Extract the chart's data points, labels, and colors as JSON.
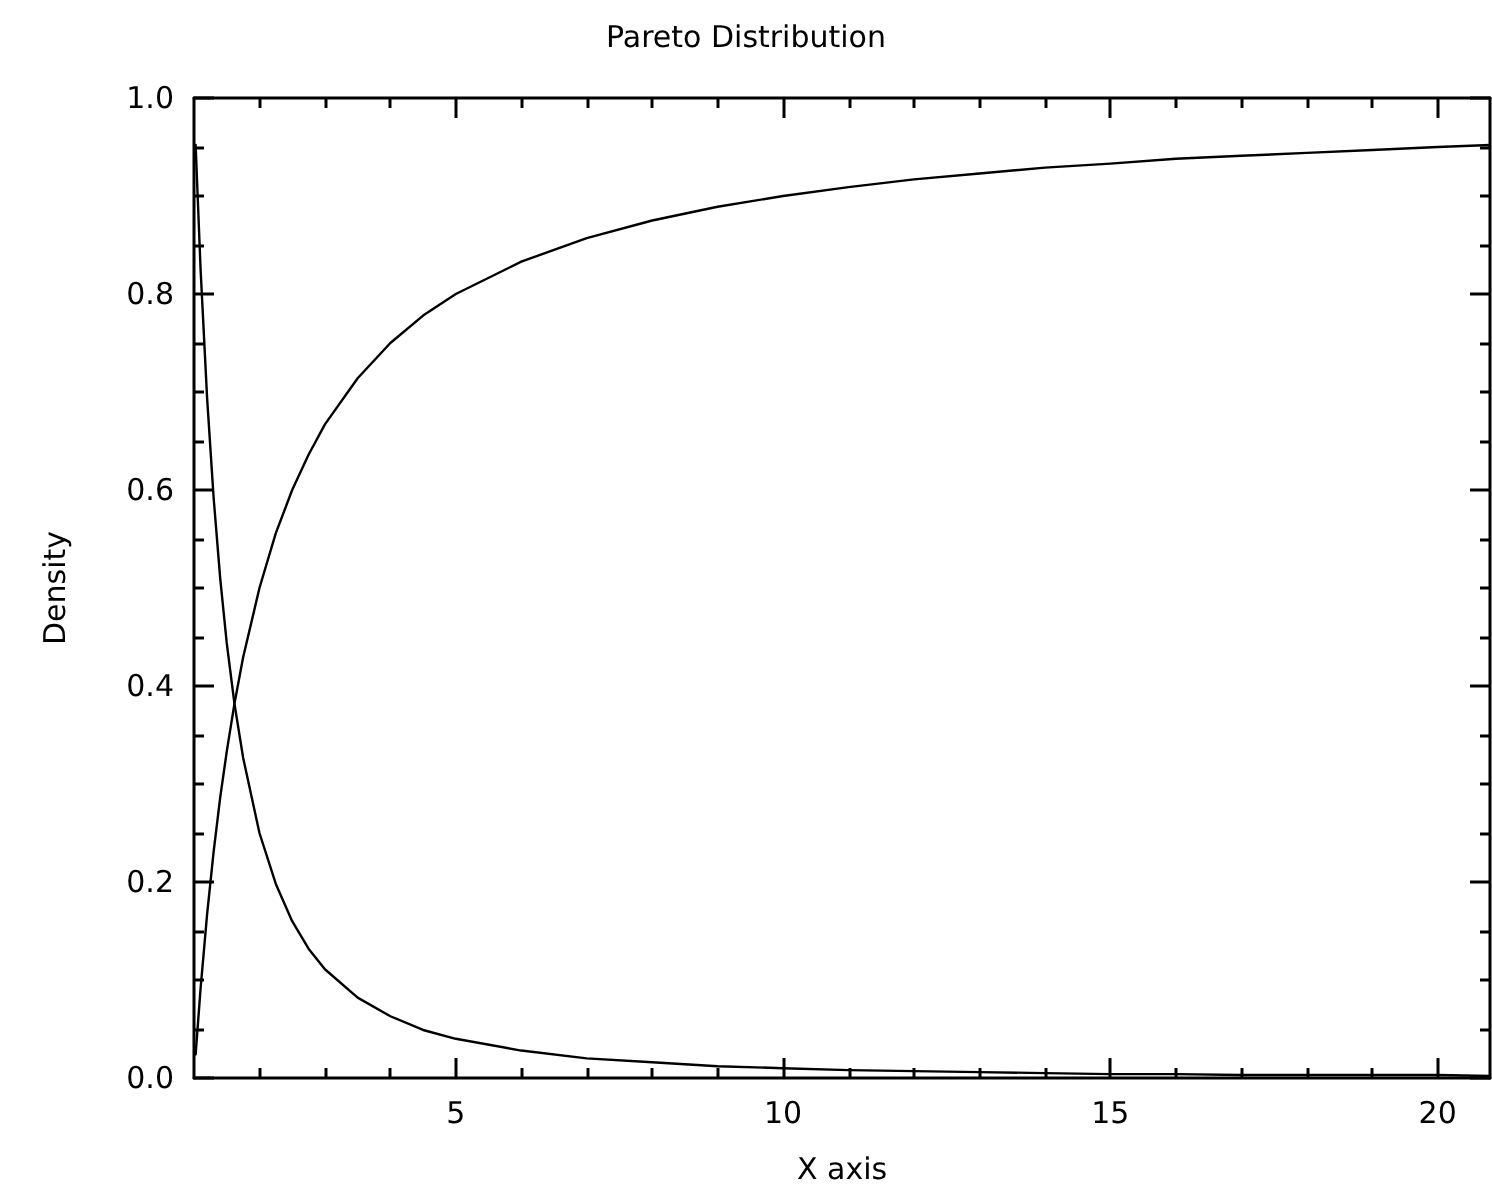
{
  "chart_data": {
    "type": "line",
    "title": "Pareto Distribution",
    "xlabel": "X axis",
    "ylabel": "Density",
    "x": [
      1.025,
      1.1,
      1.2,
      1.3,
      1.4,
      1.5,
      1.618,
      1.75,
      2,
      2.25,
      2.5,
      2.75,
      3,
      3.5,
      4,
      4.5,
      5,
      6,
      7,
      8,
      9,
      10,
      11,
      12,
      13,
      14,
      15,
      16,
      17,
      18,
      19,
      20,
      20.8
    ],
    "series": [
      {
        "color": "#000000",
        "values": [
          0.952,
          0.826,
          0.694,
          0.592,
          0.51,
          0.444,
          0.382,
          0.327,
          0.25,
          0.198,
          0.16,
          0.132,
          0.111,
          0.082,
          0.063,
          0.049,
          0.04,
          0.028,
          0.02,
          0.016,
          0.012,
          0.01,
          0.008,
          0.007,
          0.006,
          0.005,
          0.004,
          0.004,
          0.003,
          0.003,
          0.003,
          0.003,
          0.002
        ]
      },
      {
        "color": "#000000",
        "values": [
          0.024,
          0.091,
          0.167,
          0.231,
          0.286,
          0.333,
          0.382,
          0.429,
          0.5,
          0.556,
          0.6,
          0.636,
          0.667,
          0.714,
          0.75,
          0.778,
          0.8,
          0.833,
          0.857,
          0.875,
          0.889,
          0.9,
          0.909,
          0.917,
          0.923,
          0.929,
          0.933,
          0.938,
          0.941,
          0.944,
          0.947,
          0.95,
          0.952
        ]
      }
    ],
    "xlim": [
      1,
      20.8
    ],
    "xticks": [
      {
        "value": 2,
        "label": null
      },
      {
        "value": 3,
        "label": null
      },
      {
        "value": 4,
        "label": null
      },
      5,
      {
        "value": 6,
        "label": null
      },
      {
        "value": 7,
        "label": null
      },
      {
        "value": 8,
        "label": null
      },
      {
        "value": 9,
        "label": null
      },
      10,
      {
        "value": 11,
        "label": null
      },
      {
        "value": 12,
        "label": null
      },
      {
        "value": 13,
        "label": null
      },
      {
        "value": 14,
        "label": null
      },
      15,
      {
        "value": 16,
        "label": null
      },
      {
        "value": 17,
        "label": null
      },
      {
        "value": 18,
        "label": null
      },
      {
        "value": 19,
        "label": null
      },
      20
    ],
    "ylim": [
      0,
      1
    ],
    "yticks": [
      {
        "value": 0,
        "label": "0.0"
      },
      {
        "value": 0.05,
        "label": null
      },
      {
        "value": 0.1,
        "label": null
      },
      {
        "value": 0.15,
        "label": null
      },
      {
        "value": 0.2,
        "label": "0.2"
      },
      {
        "value": 0.25,
        "label": null
      },
      {
        "value": 0.3,
        "label": null
      },
      {
        "value": 0.35,
        "label": null
      },
      {
        "value": 0.4,
        "label": "0.4"
      },
      {
        "value": 0.45,
        "label": null
      },
      {
        "value": 0.5,
        "label": null
      },
      {
        "value": 0.55,
        "label": null
      },
      {
        "value": 0.6,
        "label": "0.6"
      },
      {
        "value": 0.65,
        "label": null
      },
      {
        "value": 0.7,
        "label": null
      },
      {
        "value": 0.75,
        "label": null
      },
      {
        "value": 0.8,
        "label": "0.8"
      },
      {
        "value": 0.85,
        "label": null
      },
      {
        "value": 0.9,
        "label": null
      },
      {
        "value": 0.95,
        "label": null
      },
      {
        "value": 1,
        "label": "1.0"
      }
    ],
    "marker": "none",
    "line_style": "solid"
  }
}
